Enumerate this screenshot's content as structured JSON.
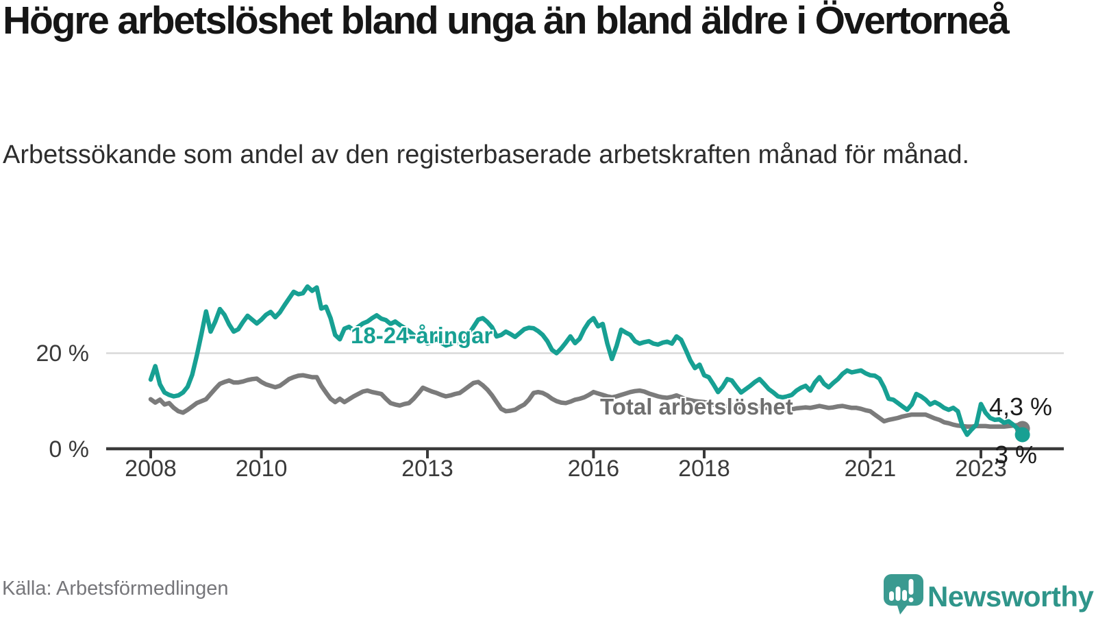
{
  "title": "Högre arbetslöshet bland unga än bland äldre i Övertorneå",
  "subtitle": "Arbetssökande som andel av den registerbaserade arbetskraften månad för månad.",
  "source": "Källa: Arbetsförmedlingen",
  "logo": {
    "text": "Newsworthy",
    "icon": "newsworthy-chart-bubble"
  },
  "colors": {
    "young": "#17a093",
    "total": "#7b7b7b",
    "grid": "#d9d9d9",
    "axis": "#3a3a3a",
    "value_label": "#1b1b1b",
    "logo": "#2f958a"
  },
  "chart_data": {
    "type": "line",
    "title": "Högre arbetslöshet bland unga än bland äldre i Övertorneå",
    "subtitle": "Arbetssökande som andel av den registerbaserade arbetskraften månad för månad.",
    "unit": "%",
    "x_start_year": 2008,
    "x_step_months": 1,
    "x_end": "2023-10",
    "ylim": [
      0,
      36
    ],
    "grid": "y-gridline-at-20-only",
    "legend_position": "inline-labels-on-lines",
    "y_ticks": [
      {
        "value": 20,
        "label": "20 %"
      },
      {
        "value": 0,
        "label": "0 %"
      }
    ],
    "x_ticks": [
      {
        "year": 2008,
        "label": "2008"
      },
      {
        "year": 2010,
        "label": "2010"
      },
      {
        "year": 2013,
        "label": "2013"
      },
      {
        "year": 2016,
        "label": "2016"
      },
      {
        "year": 2018,
        "label": "2018"
      },
      {
        "year": 2021,
        "label": "2021"
      },
      {
        "year": 2023,
        "label": "2023"
      }
    ],
    "series": [
      {
        "name": "Total arbetslöshet",
        "color": "#7b7b7b",
        "end_label": "4,3 %",
        "end_value": 4.3,
        "values": [
          10.4,
          9.7,
          10.3,
          9.3,
          9.6,
          8.6,
          7.9,
          7.6,
          8.2,
          8.9,
          9.6,
          10.0,
          10.4,
          11.5,
          12.6,
          13.6,
          14.0,
          14.3,
          13.9,
          13.9,
          14.1,
          14.4,
          14.6,
          14.7,
          14.0,
          13.5,
          13.2,
          12.9,
          13.2,
          13.9,
          14.6,
          15.0,
          15.3,
          15.4,
          15.2,
          15.0,
          15.0,
          13.2,
          11.8,
          10.5,
          9.8,
          10.5,
          9.8,
          10.4,
          11.0,
          11.5,
          12.0,
          12.2,
          11.9,
          11.7,
          11.5,
          10.5,
          9.6,
          9.3,
          9.1,
          9.4,
          9.6,
          10.5,
          11.6,
          12.8,
          12.4,
          12.0,
          11.7,
          11.3,
          11.0,
          11.2,
          11.5,
          11.7,
          12.4,
          13.1,
          13.8,
          14.0,
          13.3,
          12.4,
          11.2,
          9.8,
          8.4,
          7.9,
          8.0,
          8.2,
          8.8,
          9.3,
          10.3,
          11.7,
          11.9,
          11.7,
          11.2,
          10.5,
          10.0,
          9.7,
          9.6,
          9.9,
          10.3,
          10.5,
          10.8,
          11.3,
          11.9,
          11.6,
          11.3,
          11.0,
          10.8,
          11.0,
          11.3,
          11.6,
          11.9,
          12.1,
          12.2,
          12.0,
          11.6,
          11.3,
          11.0,
          10.8,
          10.7,
          10.9,
          11.2,
          10.8,
          10.4,
          10.2,
          10.0,
          9.9,
          9.8,
          9.6,
          9.3,
          9.0,
          8.8,
          8.9,
          9.1,
          8.9,
          8.6,
          8.5,
          8.6,
          8.8,
          8.9,
          8.7,
          8.5,
          8.3,
          8.1,
          8.0,
          8.1,
          8.3,
          8.5,
          8.6,
          8.7,
          8.6,
          8.8,
          9.0,
          8.8,
          8.6,
          8.7,
          8.9,
          9.0,
          8.8,
          8.6,
          8.6,
          8.4,
          8.1,
          7.9,
          7.2,
          6.5,
          5.8,
          6.1,
          6.3,
          6.5,
          6.8,
          7.0,
          7.2,
          7.2,
          7.2,
          7.2,
          6.8,
          6.4,
          6.1,
          5.6,
          5.4,
          5.1,
          4.9,
          4.8,
          4.7,
          4.7,
          4.8,
          4.8,
          4.8,
          4.7,
          4.7,
          4.7,
          4.7,
          4.8,
          4.9,
          5.0,
          4.3
        ]
      },
      {
        "name": "18-24-åringar",
        "color": "#17a093",
        "end_label": "3 %",
        "end_value": 3.0,
        "values": [
          14.5,
          17.3,
          13.5,
          11.8,
          11.3,
          11.0,
          11.2,
          11.8,
          13.0,
          15.5,
          19.5,
          24.0,
          28.7,
          24.5,
          26.6,
          29.2,
          28.0,
          26.0,
          24.5,
          25.0,
          26.5,
          27.8,
          27.0,
          26.2,
          27.0,
          28.0,
          28.6,
          27.5,
          28.5,
          30.0,
          31.4,
          32.8,
          32.3,
          32.5,
          33.9,
          33.0,
          33.7,
          29.3,
          29.7,
          27.3,
          23.8,
          22.9,
          25.1,
          25.5,
          24.8,
          25.5,
          26.2,
          26.6,
          27.3,
          27.9,
          27.2,
          26.9,
          26.1,
          26.6,
          25.9,
          25.3,
          24.6,
          23.8,
          23.2,
          22.6,
          22.0,
          22.4,
          23.0,
          22.2,
          21.6,
          21.9,
          22.5,
          22.0,
          22.8,
          24.0,
          25.5,
          27.0,
          27.3,
          26.5,
          25.4,
          23.5,
          23.8,
          24.5,
          24.0,
          23.4,
          24.2,
          25.0,
          25.3,
          25.2,
          24.6,
          23.8,
          22.5,
          20.7,
          20.0,
          21.0,
          22.2,
          23.5,
          22.1,
          23.0,
          25.0,
          26.5,
          27.3,
          25.6,
          26.1,
          22.0,
          18.8,
          21.5,
          24.9,
          24.3,
          23.8,
          22.5,
          22.0,
          22.3,
          22.5,
          22.0,
          21.8,
          22.2,
          22.4,
          22.0,
          23.5,
          22.8,
          20.7,
          18.5,
          16.9,
          17.6,
          15.4,
          15.0,
          13.5,
          11.9,
          13.0,
          14.6,
          14.3,
          13.0,
          11.8,
          12.5,
          13.2,
          14.0,
          14.6,
          13.6,
          12.5,
          11.8,
          11.0,
          10.8,
          11.0,
          11.3,
          12.2,
          12.8,
          13.2,
          12.2,
          13.9,
          15.0,
          13.6,
          12.9,
          13.8,
          14.6,
          15.7,
          16.4,
          16.0,
          16.2,
          16.4,
          15.8,
          15.4,
          15.3,
          14.7,
          12.9,
          10.5,
          10.3,
          9.6,
          8.9,
          8.2,
          9.3,
          11.5,
          11.0,
          10.3,
          9.3,
          9.8,
          9.3,
          8.6,
          8.2,
          8.6,
          7.9,
          4.7,
          3.0,
          4.1,
          5.1,
          9.4,
          7.6,
          6.5,
          6.1,
          6.2,
          5.5,
          5.8,
          5.1,
          4.2,
          3.0
        ]
      }
    ]
  }
}
